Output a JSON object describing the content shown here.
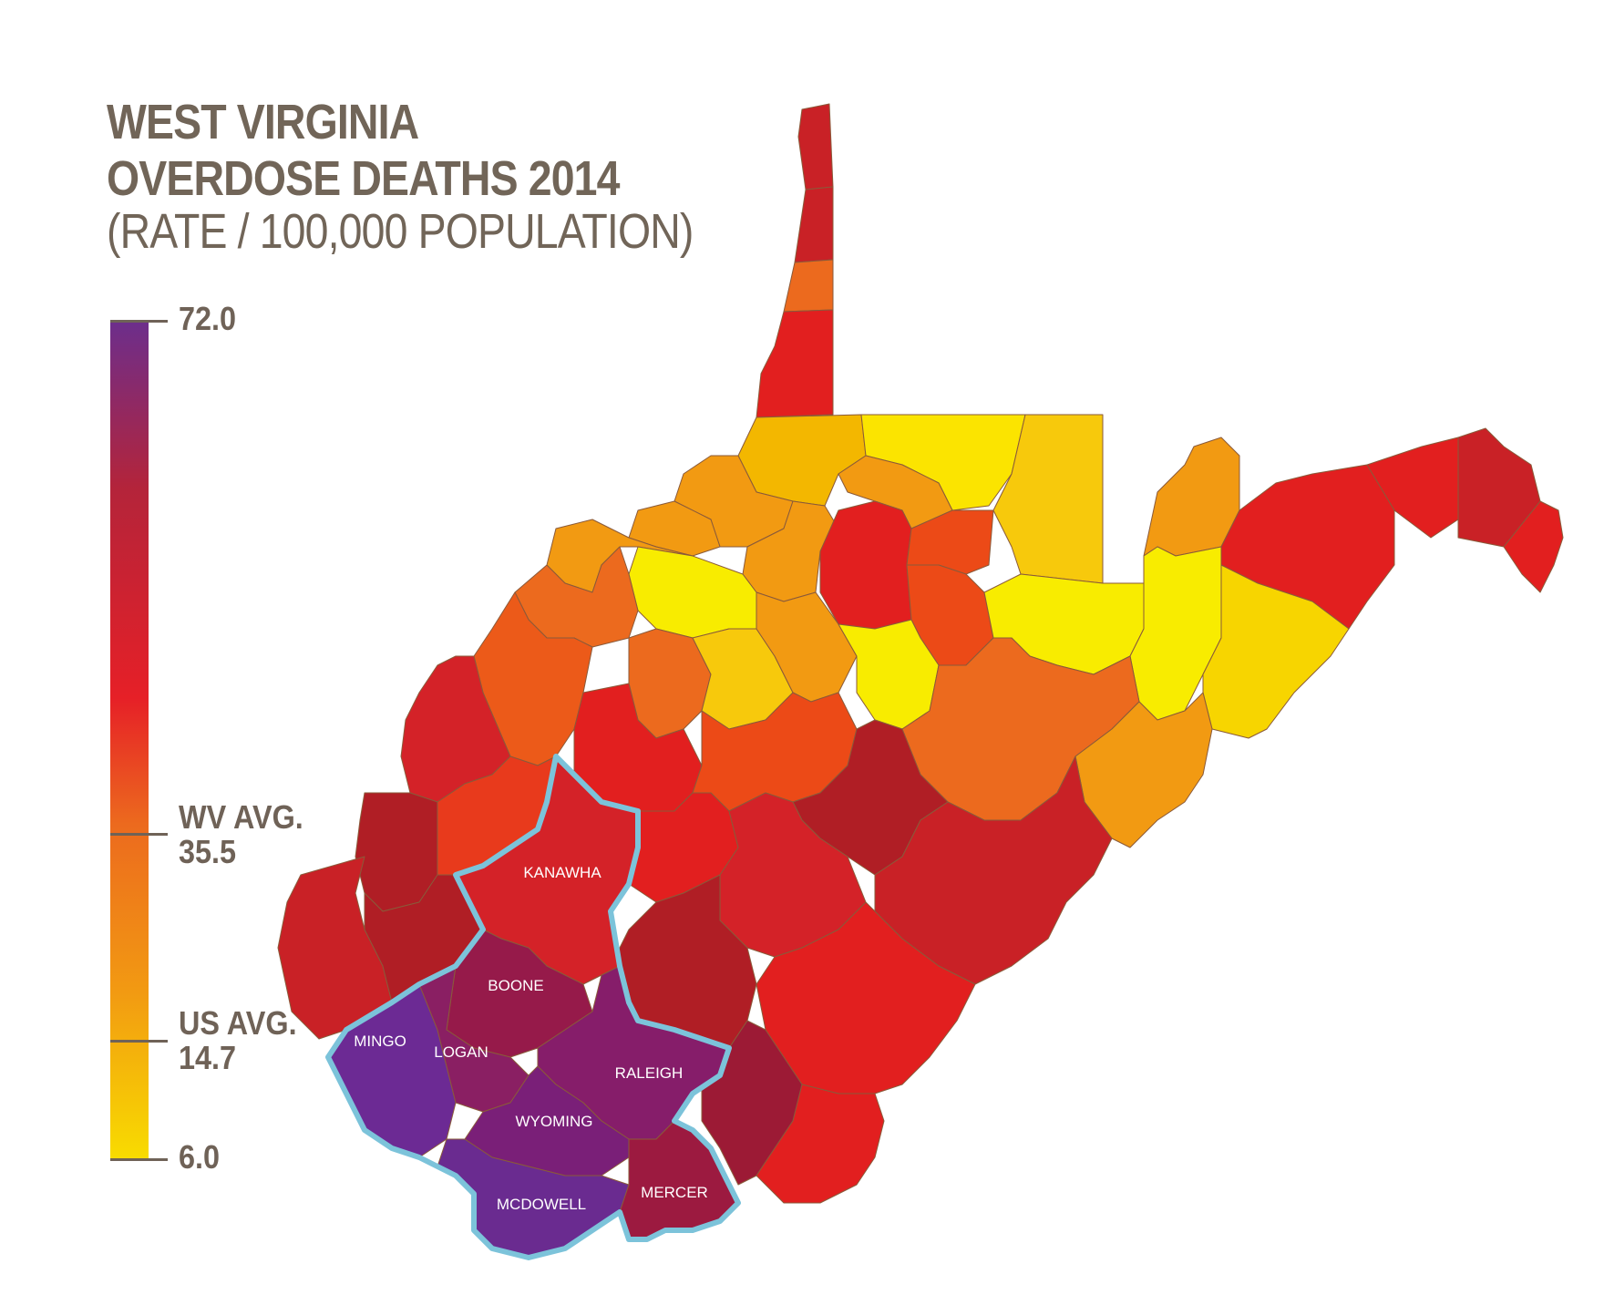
{
  "title": {
    "line1": "WEST VIRGINIA",
    "line2": "OVERDOSE DEATHS 2014",
    "line3": "(RATE / 100,000 POPULATION)"
  },
  "legend": {
    "max": "72.0",
    "wv_avg_label": "WV AVG.",
    "wv_avg_value": "35.5",
    "us_avg_label": "US AVG.",
    "us_avg_value": "14.7",
    "min": "6.0",
    "colors": [
      "#f8dc00",
      "#f29a12",
      "#ec6a1e",
      "#e62027",
      "#b4243a",
      "#6c2e8c"
    ]
  },
  "highlighted_counties": {
    "kanawha": "KANAWHA",
    "boone": "BOONE",
    "mingo": "MINGO",
    "logan": "LOGAN",
    "raleigh": "RALEIGH",
    "wyoming": "WYOMING",
    "mcdowell": "MCDOWELL",
    "mercer": "MERCER"
  },
  "highlight_outline_color": "#7cc3da"
}
